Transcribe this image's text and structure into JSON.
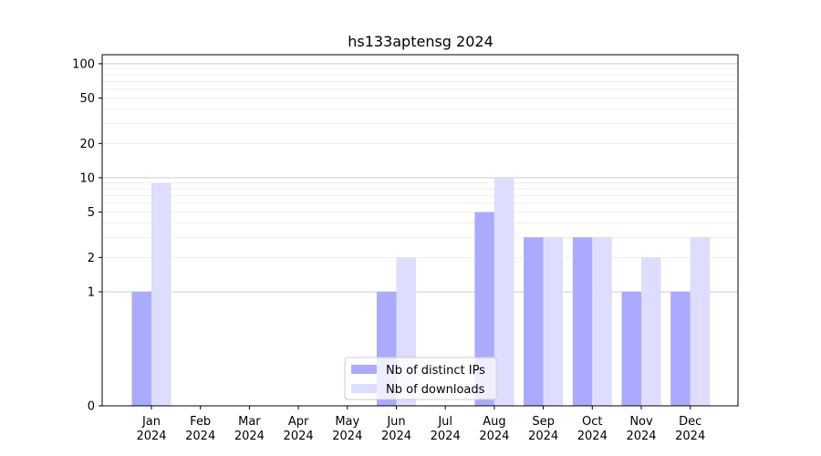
{
  "chart_data": {
    "type": "bar",
    "title": "hs133aptensg 2024",
    "xlabel": "",
    "ylabel": "",
    "categories": [
      [
        "Jan",
        "2024"
      ],
      [
        "Feb",
        "2024"
      ],
      [
        "Mar",
        "2024"
      ],
      [
        "Apr",
        "2024"
      ],
      [
        "May",
        "2024"
      ],
      [
        "Jun",
        "2024"
      ],
      [
        "Jul",
        "2024"
      ],
      [
        "Aug",
        "2024"
      ],
      [
        "Sep",
        "2024"
      ],
      [
        "Oct",
        "2024"
      ],
      [
        "Nov",
        "2024"
      ],
      [
        "Dec",
        "2024"
      ]
    ],
    "yscale": "symlog",
    "ylim": [
      0,
      120
    ],
    "yticks": [
      0,
      1,
      2,
      5,
      10,
      20,
      50,
      100
    ],
    "grid": true,
    "legend_position": "lower-center",
    "series": [
      {
        "name": "Nb of distinct IPs",
        "color": "#aaaaff",
        "values": [
          1,
          0,
          0,
          0,
          0,
          1,
          0,
          5,
          3,
          3,
          1,
          1
        ]
      },
      {
        "name": "Nb of downloads",
        "color": "#ddddff",
        "values": [
          9,
          0,
          0,
          0,
          0,
          2,
          0,
          10,
          3,
          3,
          2,
          3
        ]
      }
    ]
  }
}
